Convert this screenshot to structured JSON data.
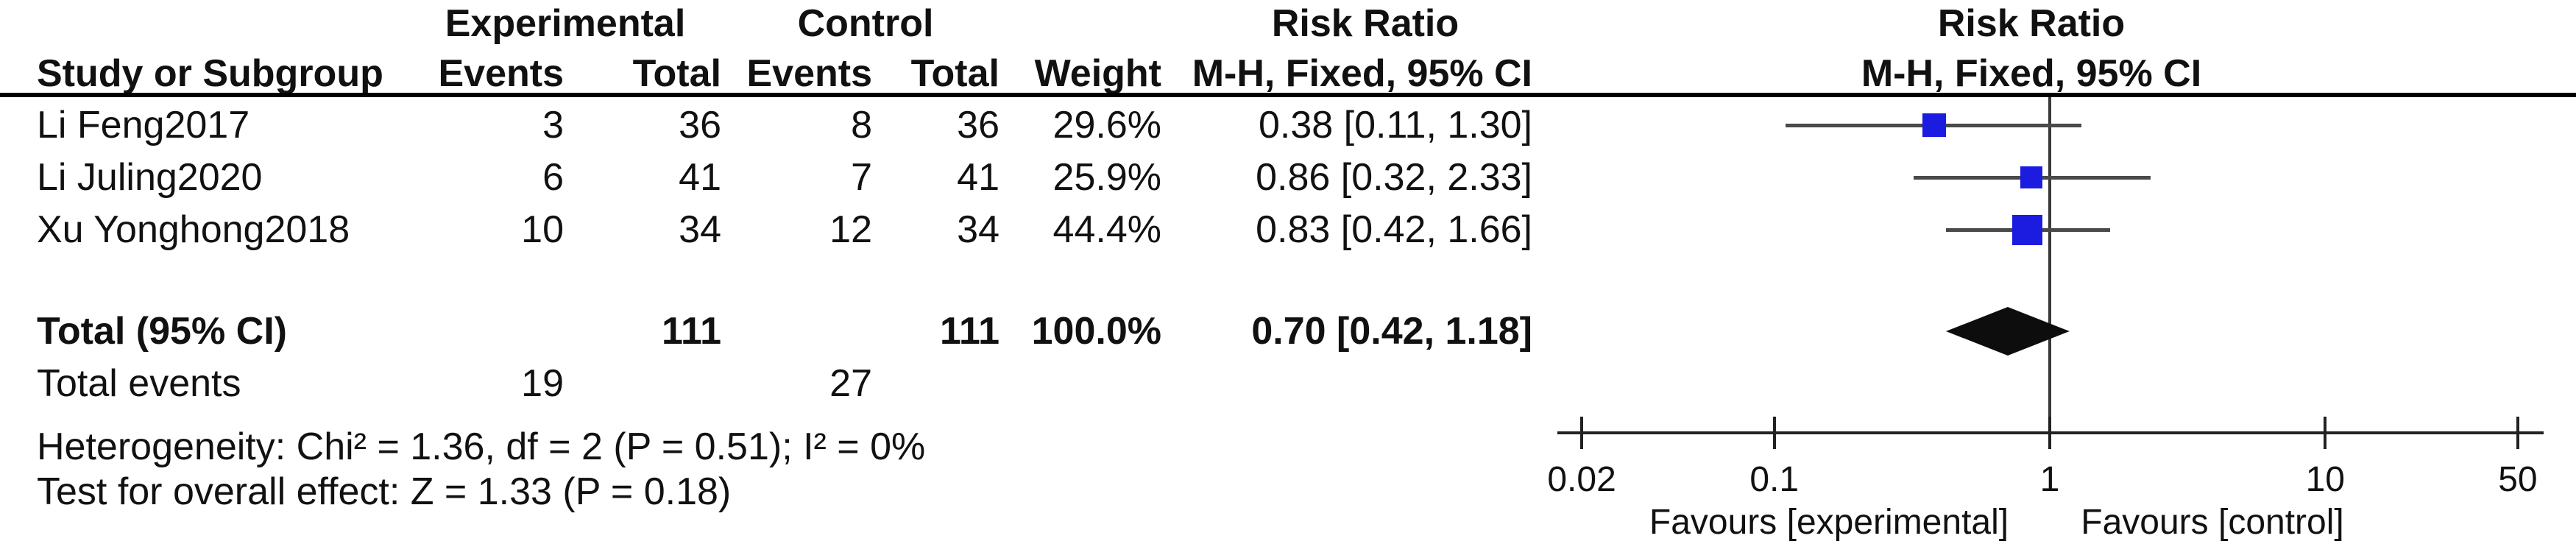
{
  "table": {
    "group_headers": {
      "experimental": "Experimental",
      "control": "Control",
      "risk_ratio": "Risk Ratio"
    },
    "columns": {
      "study": "Study or Subgroup",
      "events": "Events",
      "total": "Total",
      "weight": "Weight",
      "mh": "M-H, Fixed, 95% CI"
    },
    "studies": [
      {
        "name": "Li Feng2017",
        "events_exp": "3",
        "total_exp": "36",
        "events_ctrl": "8",
        "total_ctrl": "36",
        "weight": "29.6%",
        "ci_text": "0.38 [0.11, 1.30]"
      },
      {
        "name": "Li Juling2020",
        "events_exp": "6",
        "total_exp": "41",
        "events_ctrl": "7",
        "total_ctrl": "41",
        "weight": "25.9%",
        "ci_text": "0.86 [0.32, 2.33]"
      },
      {
        "name": "Xu Yonghong2018",
        "events_exp": "10",
        "total_exp": "34",
        "events_ctrl": "12",
        "total_ctrl": "34",
        "weight": "44.4%",
        "ci_text": "0.83 [0.42, 1.66]"
      }
    ],
    "total": {
      "label": "Total (95% CI)",
      "total_exp": "111",
      "total_ctrl": "111",
      "weight": "100.0%",
      "ci_text": "0.70 [0.42, 1.18]"
    },
    "total_events": {
      "label": "Total events",
      "exp": "19",
      "ctrl": "27"
    },
    "heterogeneity": "Heterogeneity: Chi² = 1.36, df = 2 (P = 0.51); I² = 0%",
    "overall_effect": "Test for overall effect: Z = 1.33 (P = 0.18)"
  },
  "chart_data": {
    "type": "forest",
    "effect_measure": "Risk Ratio",
    "method": "M-H, Fixed, 95% CI",
    "x_scale": "log10",
    "axis": {
      "ticks": [
        0.02,
        0.1,
        1,
        10,
        50
      ],
      "tick_labels": [
        "0.02",
        "0.1",
        "1",
        "10",
        "50"
      ],
      "xlim": [
        0.0165,
        55
      ],
      "ref_line": 1,
      "favours_left": "Favours [experimental]",
      "favours_right": "Favours [control]"
    },
    "studies": [
      {
        "name": "Li Feng2017",
        "rr": 0.38,
        "ci_low": 0.11,
        "ci_high": 1.3,
        "weight_pct": 29.6
      },
      {
        "name": "Li Juling2020",
        "rr": 0.86,
        "ci_low": 0.32,
        "ci_high": 2.33,
        "weight_pct": 25.9
      },
      {
        "name": "Xu Yonghong2018",
        "rr": 0.83,
        "ci_low": 0.42,
        "ci_high": 1.66,
        "weight_pct": 44.4
      }
    ],
    "total": {
      "rr": 0.7,
      "ci_low": 0.42,
      "ci_high": 1.18
    }
  },
  "colors": {
    "square": "#1c1ce0",
    "diamond": "#0d0d0d",
    "ci_line": "#4a4a4a",
    "text": "#111111",
    "rule": "#000000"
  }
}
